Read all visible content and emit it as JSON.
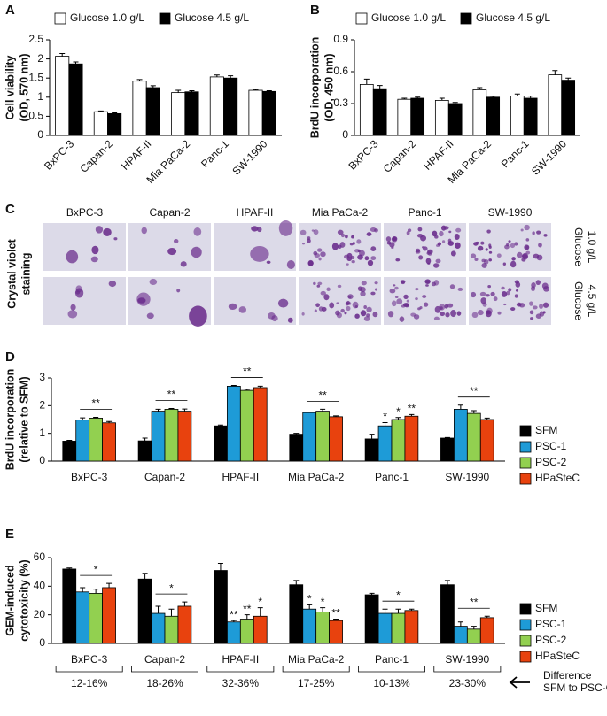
{
  "chart_data": [
    {
      "type": "bar",
      "panel": "A",
      "ylabel": [
        "Cell viability",
        "(OD, 570 nm)"
      ],
      "categories": [
        "BxPC-3",
        "Capan-2",
        "HPAF-II",
        "Mia PaCa-2",
        "Panc-1",
        "SW-1990"
      ],
      "series": [
        {
          "name": "Glucose 1.0 g/L",
          "color": "#ffffff",
          "values": [
            2.07,
            0.62,
            1.42,
            1.12,
            1.53,
            1.18
          ],
          "errors": [
            0.07,
            0.02,
            0.04,
            0.06,
            0.05,
            0.02
          ]
        },
        {
          "name": "Glucose 4.5 g/L",
          "color": "#000000",
          "values": [
            1.87,
            0.57,
            1.25,
            1.14,
            1.5,
            1.15
          ],
          "errors": [
            0.05,
            0.02,
            0.05,
            0.03,
            0.06,
            0.02
          ]
        }
      ],
      "ylim": [
        0,
        2.5
      ],
      "yticks": [
        0,
        0.5,
        1,
        1.5,
        2,
        2.5
      ]
    },
    {
      "type": "bar",
      "panel": "B",
      "ylabel": [
        "BrdU incorporation",
        "(OD, 450 nm)"
      ],
      "categories": [
        "BxPC-3",
        "Capan-2",
        "HPAF-II",
        "Mia PaCa-2",
        "Panc-1",
        "SW-1990"
      ],
      "series": [
        {
          "name": "Glucose 1.0 g/L",
          "color": "#ffffff",
          "values": [
            0.48,
            0.34,
            0.33,
            0.43,
            0.37,
            0.57
          ],
          "errors": [
            0.05,
            0.01,
            0.02,
            0.02,
            0.02,
            0.04
          ]
        },
        {
          "name": "Glucose 4.5 g/L",
          "color": "#000000",
          "values": [
            0.44,
            0.35,
            0.3,
            0.36,
            0.35,
            0.52
          ],
          "errors": [
            0.03,
            0.01,
            0.01,
            0.01,
            0.02,
            0.02
          ]
        }
      ],
      "ylim": [
        0,
        0.9
      ],
      "yticks": [
        0,
        0.3,
        0.6,
        0.9
      ]
    },
    {
      "type": "bar",
      "panel": "D",
      "ylabel": [
        "BrdU incorporation",
        "(relative to SFM)"
      ],
      "categories": [
        "BxPC-3",
        "Capan-2",
        "HPAF-II",
        "Mia PaCa-2",
        "Panc-1",
        "SW-1990"
      ],
      "series": [
        {
          "name": "SFM",
          "color": "#000000",
          "values": [
            0.72,
            0.73,
            1.27,
            0.97,
            0.8,
            0.83
          ],
          "errors": [
            0.03,
            0.1,
            0.03,
            0.03,
            0.17,
            0.02
          ]
        },
        {
          "name": "PSC-1",
          "color": "#1e9bd7",
          "values": [
            1.48,
            1.8,
            2.7,
            1.75,
            1.27,
            1.87
          ],
          "errors": [
            0.08,
            0.07,
            0.03,
            0.02,
            0.12,
            0.15
          ]
        },
        {
          "name": "PSC-2",
          "color": "#92d050",
          "values": [
            1.55,
            1.87,
            2.55,
            1.8,
            1.5,
            1.72
          ],
          "errors": [
            0.03,
            0.03,
            0.04,
            0.07,
            0.07,
            0.1
          ]
        },
        {
          "name": "HPaSteC",
          "color": "#e8420e",
          "values": [
            1.38,
            1.8,
            2.65,
            1.6,
            1.62,
            1.5
          ],
          "errors": [
            0.05,
            0.08,
            0.05,
            0.03,
            0.06,
            0.05
          ]
        }
      ],
      "significance": [
        "**",
        "**",
        "**",
        "**",
        [
          null,
          "*",
          "*",
          "**"
        ],
        "**"
      ],
      "ylim": [
        0,
        3
      ],
      "yticks": [
        0,
        1,
        2,
        3
      ]
    },
    {
      "type": "bar",
      "panel": "E",
      "ylabel": [
        "GEM-induced",
        "cytotoxicity (%)"
      ],
      "categories": [
        "BxPC-3",
        "Capan-2",
        "HPAF-II",
        "Mia PaCa-2",
        "Panc-1",
        "SW-1990"
      ],
      "series": [
        {
          "name": "SFM",
          "color": "#000000",
          "values": [
            52,
            45,
            51,
            41,
            34,
            41
          ],
          "errors": [
            0.7,
            4,
            5,
            3,
            1,
            3
          ]
        },
        {
          "name": "PSC-1",
          "color": "#1e9bd7",
          "values": [
            36,
            21,
            15,
            24,
            21,
            12
          ],
          "errors": [
            3,
            5,
            1,
            3,
            3,
            3
          ]
        },
        {
          "name": "PSC-2",
          "color": "#92d050",
          "values": [
            35,
            19,
            17,
            22,
            21,
            10
          ],
          "errors": [
            3,
            5,
            3,
            3,
            3,
            2
          ]
        },
        {
          "name": "HPaSteC",
          "color": "#e8420e",
          "values": [
            39,
            26,
            19,
            16,
            23,
            18
          ],
          "errors": [
            3,
            3,
            6,
            1,
            1,
            1
          ]
        }
      ],
      "significance": [
        "*",
        "*",
        [
          null,
          "**",
          "**",
          "*"
        ],
        [
          null,
          "*",
          "*",
          "**"
        ],
        "*",
        "**"
      ],
      "differences": [
        "12-16%",
        "18-26%",
        "32-36%",
        "17-25%",
        "10-13%",
        "23-30%"
      ],
      "difference_note": [
        "Difference",
        "SFM to PSC-CM"
      ],
      "ylim": [
        0,
        60
      ],
      "yticks": [
        0,
        20,
        40,
        60
      ]
    }
  ],
  "panel_c": {
    "panel": "C",
    "ylabel": [
      "Crystal violet",
      "staining"
    ],
    "columns": [
      "BxPC-3",
      "Capan-2",
      "HPAF-II",
      "Mia PaCa-2",
      "Panc-1",
      "SW-1990"
    ],
    "rows": [
      [
        "Glucose",
        "1.0 g/L"
      ],
      [
        "Glucose",
        "4.5 g/L"
      ]
    ]
  }
}
